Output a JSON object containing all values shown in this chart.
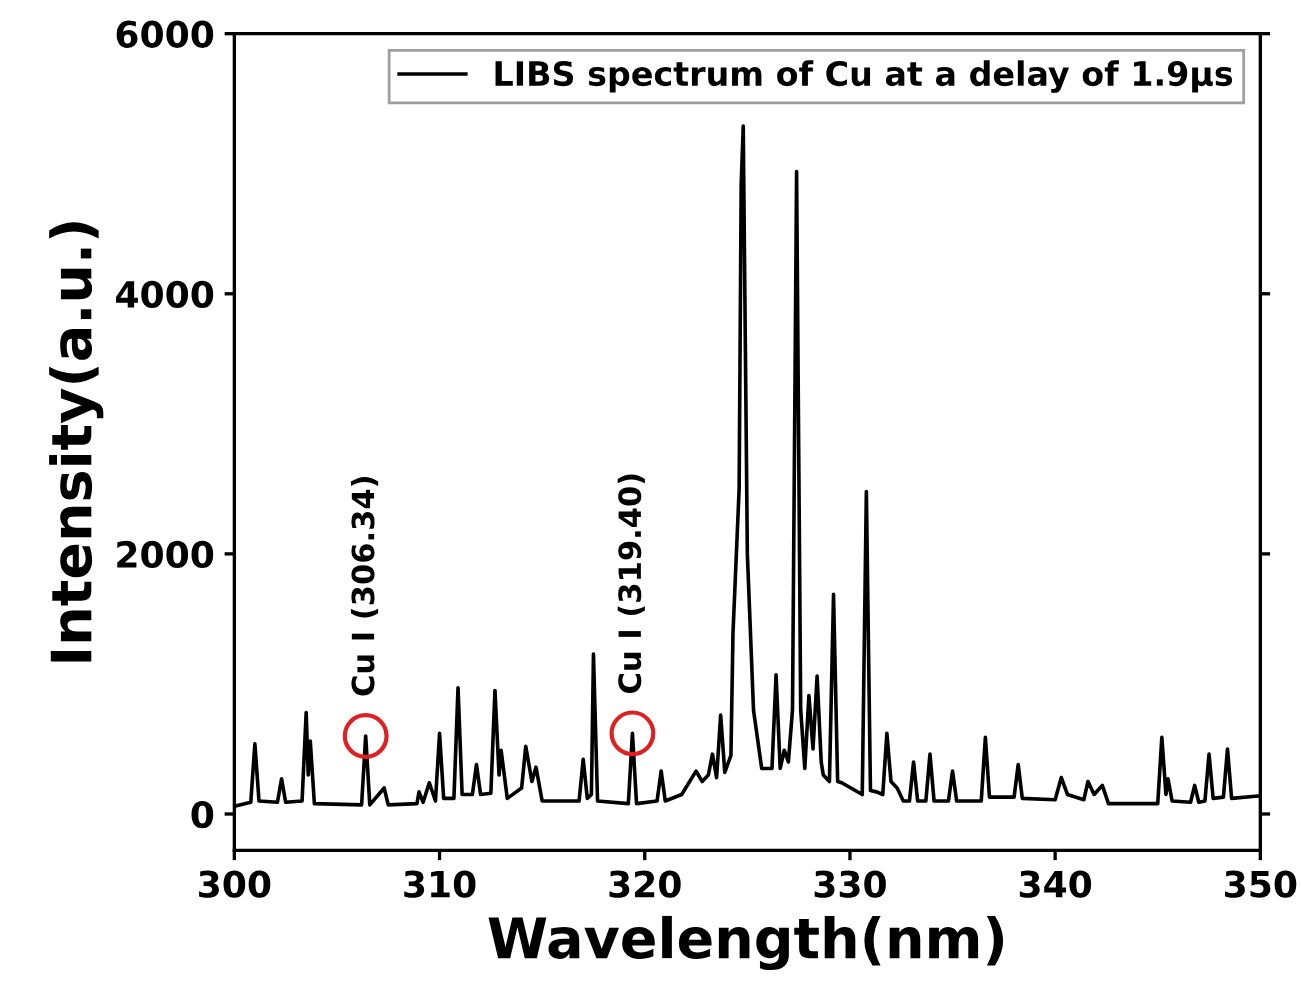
{
  "chart_data": {
    "type": "line",
    "xlabel": "Wavelength(nm)",
    "ylabel": "Intensity(a.u.)",
    "xlim": [
      300,
      350
    ],
    "xticks": [
      300,
      310,
      320,
      330,
      340,
      350
    ],
    "ylim": [
      -280,
      6000
    ],
    "yticks": [
      0,
      2000,
      4000,
      6000
    ],
    "grid": false,
    "legend": "top right",
    "marker": "none",
    "line_style": "solid",
    "annotations": [
      {
        "text": "Cu I (306.34)",
        "x": 306.4,
        "y": 600
      },
      {
        "text": "Cu I (319.40)",
        "x": 319.4,
        "y": 620
      }
    ],
    "series": [
      {
        "name": "LIBS spectrum of Cu at a delay of 1.9μs",
        "color": "#000000",
        "x": [
          300.0,
          300.8,
          301.0,
          301.2,
          302.1,
          302.3,
          302.5,
          303.3,
          303.5,
          303.6,
          303.7,
          303.9,
          306.2,
          306.4,
          306.6,
          307.3,
          307.5,
          308.9,
          309.0,
          309.2,
          309.5,
          309.8,
          310.0,
          310.2,
          310.7,
          310.9,
          311.1,
          311.6,
          311.8,
          312.0,
          312.5,
          312.7,
          312.9,
          313.0,
          313.3,
          314.0,
          314.2,
          314.5,
          314.7,
          315.0,
          316.8,
          317.0,
          317.2,
          317.4,
          317.5,
          317.7,
          319.2,
          319.4,
          319.6,
          320.6,
          320.8,
          321.0,
          321.8,
          322.5,
          322.8,
          323.1,
          323.3,
          323.5,
          323.7,
          323.9,
          324.2,
          324.3,
          324.6,
          324.7,
          324.8,
          325.0,
          325.3,
          325.7,
          326.2,
          326.4,
          326.6,
          326.8,
          327.0,
          327.2,
          327.4,
          327.6,
          327.8,
          328.0,
          328.2,
          328.4,
          328.6,
          328.7,
          329.0,
          329.2,
          329.4,
          329.6,
          330.6,
          330.8,
          331.0,
          331.3,
          331.6,
          331.8,
          332.0,
          332.3,
          332.6,
          332.9,
          333.1,
          333.3,
          333.7,
          333.9,
          334.1,
          334.8,
          335.0,
          335.2,
          336.4,
          336.6,
          336.8,
          338.0,
          338.2,
          338.4,
          340.0,
          340.3,
          340.6,
          341.4,
          341.6,
          341.9,
          342.3,
          342.6,
          345.0,
          345.2,
          345.4,
          345.5,
          345.7,
          346.6,
          346.8,
          347.0,
          347.3,
          347.5,
          347.7,
          348.2,
          348.4,
          348.6,
          350.0
        ],
        "values": [
          60,
          90,
          540,
          100,
          90,
          270,
          90,
          100,
          780,
          300,
          560,
          80,
          70,
          600,
          70,
          200,
          70,
          80,
          170,
          90,
          240,
          100,
          620,
          120,
          120,
          970,
          150,
          150,
          380,
          150,
          160,
          950,
          300,
          490,
          120,
          200,
          520,
          250,
          360,
          100,
          100,
          420,
          120,
          150,
          1230,
          100,
          80,
          620,
          80,
          100,
          330,
          100,
          150,
          330,
          250,
          300,
          460,
          280,
          760,
          320,
          450,
          1390,
          2500,
          4840,
          5290,
          2000,
          800,
          350,
          350,
          1070,
          350,
          490,
          400,
          800,
          4940,
          800,
          350,
          910,
          500,
          1060,
          400,
          300,
          250,
          1690,
          250,
          240,
          150,
          2480,
          180,
          170,
          150,
          620,
          250,
          200,
          100,
          100,
          400,
          100,
          100,
          460,
          100,
          100,
          330,
          100,
          100,
          590,
          130,
          130,
          380,
          120,
          110,
          280,
          150,
          110,
          250,
          150,
          220,
          80,
          80,
          590,
          150,
          270,
          100,
          90,
          220,
          90,
          100,
          460,
          120,
          130,
          500,
          120,
          140
        ]
      }
    ]
  }
}
